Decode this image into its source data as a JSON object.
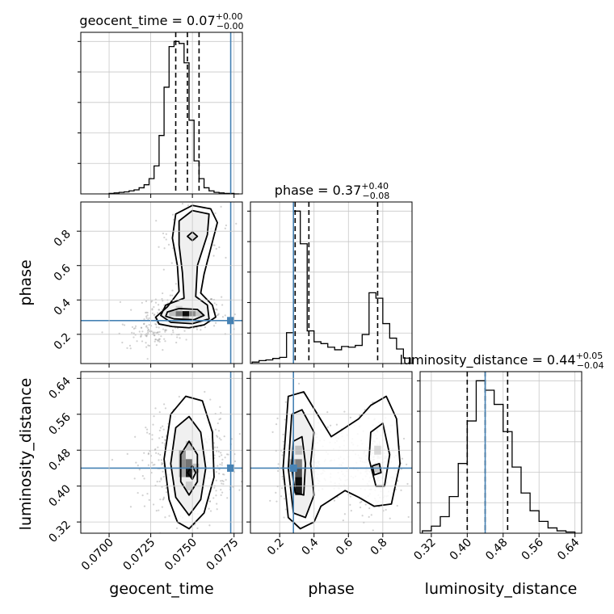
{
  "chart_data": {
    "type": "corner",
    "parameters": [
      "geocent_time",
      "phase",
      "luminosity_distance"
    ],
    "truth_color": "#4682b4",
    "truths": {
      "geocent_time": 0.0773,
      "phase": 0.28,
      "luminosity_distance": 0.44
    },
    "ranges": {
      "geocent_time": [
        0.0683,
        0.078
      ],
      "phase": [
        0.03,
        0.97
      ],
      "luminosity_distance": [
        0.295,
        0.655
      ]
    },
    "ticks": {
      "geocent_time": [
        0.07,
        0.0725,
        0.075,
        0.0775
      ],
      "phase": [
        0.2,
        0.4,
        0.6,
        0.8
      ],
      "luminosity_distance": [
        0.32,
        0.4,
        0.48,
        0.56,
        0.64
      ]
    },
    "tick_labels": {
      "geocent_time": [
        "0.0700",
        "0.0725",
        "0.0750",
        "0.0775"
      ],
      "phase": [
        "0.2",
        "0.4",
        "0.6",
        "0.8"
      ],
      "luminosity_distance": [
        "0.32",
        "0.40",
        "0.48",
        "0.56",
        "0.64"
      ]
    },
    "quantiles": {
      "geocent_time": [
        0.074,
        0.0747,
        0.0754
      ],
      "phase": [
        0.29,
        0.37,
        0.77
      ],
      "luminosity_distance": [
        0.4,
        0.44,
        0.49
      ]
    },
    "titles": {
      "geocent_time": {
        "name": "geocent_time",
        "value": "0.07",
        "plus": "+0.00",
        "minus": "−0.00"
      },
      "phase": {
        "name": "phase",
        "value": "0.37",
        "plus": "+0.40",
        "minus": "−0.08"
      },
      "luminosity_distance": {
        "name": "luminosity_distance",
        "value": "0.44",
        "plus": "+0.05",
        "minus": "−0.04"
      }
    },
    "histograms": {
      "geocent_time": {
        "edges": [
          0.07,
          0.0703,
          0.0706,
          0.0709,
          0.0712,
          0.0715,
          0.0718,
          0.0721,
          0.0724,
          0.0727,
          0.073,
          0.0733,
          0.0736,
          0.0739,
          0.0742,
          0.0745,
          0.0748,
          0.0751,
          0.0754,
          0.0757,
          0.076,
          0.0763,
          0.0766,
          0.0769,
          0.0772,
          0.0775,
          0.0778
        ],
        "counts": [
          1,
          2,
          3,
          4,
          6,
          8,
          12,
          18,
          30,
          55,
          115,
          210,
          290,
          300,
          296,
          258,
          145,
          65,
          30,
          12,
          6,
          3,
          2,
          1,
          1,
          0
        ]
      },
      "phase": {
        "edges": [
          0.04,
          0.08,
          0.12,
          0.16,
          0.2,
          0.24,
          0.28,
          0.32,
          0.36,
          0.4,
          0.44,
          0.48,
          0.52,
          0.56,
          0.6,
          0.64,
          0.68,
          0.72,
          0.76,
          0.8,
          0.84,
          0.88,
          0.92,
          0.96
        ],
        "counts": [
          4,
          8,
          10,
          14,
          17,
          85,
          420,
          330,
          90,
          60,
          55,
          45,
          38,
          47,
          45,
          50,
          80,
          195,
          180,
          110,
          70,
          40,
          15
        ]
      },
      "luminosity_distance": {
        "edges": [
          0.3,
          0.32,
          0.34,
          0.36,
          0.38,
          0.4,
          0.42,
          0.44,
          0.46,
          0.48,
          0.5,
          0.52,
          0.54,
          0.56,
          0.58,
          0.6,
          0.62,
          0.64
        ],
        "counts": [
          4,
          12,
          28,
          62,
          118,
          190,
          258,
          242,
          218,
          172,
          112,
          68,
          38,
          20,
          9,
          4,
          2
        ]
      }
    },
    "contour_panels": [
      {
        "x": "geocent_time",
        "y": "phase",
        "levels": [
          [
            [
              0.0738,
              0.245
            ],
            [
              0.0748,
              0.238
            ],
            [
              0.0757,
              0.255
            ],
            [
              0.0764,
              0.3
            ],
            [
              0.0762,
              0.37
            ],
            [
              0.0755,
              0.44
            ],
            [
              0.0757,
              0.55
            ],
            [
              0.0761,
              0.7
            ],
            [
              0.0765,
              0.85
            ],
            [
              0.0761,
              0.93
            ],
            [
              0.075,
              0.95
            ],
            [
              0.074,
              0.9
            ],
            [
              0.0738,
              0.76
            ],
            [
              0.0741,
              0.6
            ],
            [
              0.0742,
              0.45
            ],
            [
              0.0735,
              0.36
            ],
            [
              0.0728,
              0.3
            ],
            [
              0.073,
              0.26
            ]
          ],
          [
            [
              0.0737,
              0.27
            ],
            [
              0.075,
              0.262
            ],
            [
              0.076,
              0.29
            ],
            [
              0.0759,
              0.37
            ],
            [
              0.0752,
              0.42
            ],
            [
              0.0753,
              0.6
            ],
            [
              0.0759,
              0.78
            ],
            [
              0.076,
              0.9
            ],
            [
              0.075,
              0.92
            ],
            [
              0.0742,
              0.86
            ],
            [
              0.0742,
              0.72
            ],
            [
              0.0744,
              0.56
            ],
            [
              0.0745,
              0.41
            ],
            [
              0.0734,
              0.37
            ],
            [
              0.0731,
              0.31
            ]
          ],
          [
            [
              0.0739,
              0.29
            ],
            [
              0.0751,
              0.285
            ],
            [
              0.0757,
              0.31
            ],
            [
              0.0753,
              0.345
            ],
            [
              0.0742,
              0.35
            ],
            [
              0.0735,
              0.33
            ],
            [
              0.0734,
              0.305
            ]
          ],
          [
            [
              0.075,
              0.745
            ],
            [
              0.0753,
              0.77
            ],
            [
              0.075,
              0.795
            ],
            [
              0.0747,
              0.77
            ]
          ]
        ],
        "density": [
          {
            "x": 0.0746,
            "y": 0.32,
            "w": 0.0004,
            "h": 0.03,
            "shade": 0.95
          },
          {
            "x": 0.0742,
            "y": 0.32,
            "w": 0.0004,
            "h": 0.03,
            "shade": 0.55
          },
          {
            "x": 0.075,
            "y": 0.32,
            "w": 0.0004,
            "h": 0.03,
            "shade": 0.45
          },
          {
            "x": 0.0738,
            "y": 0.32,
            "w": 0.0004,
            "h": 0.03,
            "shade": 0.25
          },
          {
            "x": 0.0754,
            "y": 0.32,
            "w": 0.0004,
            "h": 0.03,
            "shade": 0.22
          },
          {
            "x": 0.0746,
            "y": 0.29,
            "w": 0.0004,
            "h": 0.03,
            "shade": 0.25
          },
          {
            "x": 0.0742,
            "y": 0.35,
            "w": 0.0004,
            "h": 0.03,
            "shade": 0.18
          },
          {
            "x": 0.075,
            "y": 0.76,
            "w": 0.0004,
            "h": 0.03,
            "shade": 0.15
          }
        ],
        "scatter": {
          "cx": 0.0745,
          "cy": 0.33,
          "sx": 0.0011,
          "sy": 0.05,
          "n": 380,
          "cx2": 0.0751,
          "cy2": 0.78,
          "sx2": 0.0008,
          "sy2": 0.08,
          "n2": 220,
          "cx3": 0.0725,
          "cy3": 0.2,
          "sx3": 0.001,
          "sy3": 0.05,
          "n3": 90
        }
      },
      {
        "x": "geocent_time",
        "y": "luminosity_distance",
        "levels": [
          [
            [
              0.0748,
              0.305
            ],
            [
              0.0757,
              0.34
            ],
            [
              0.0763,
              0.42
            ],
            [
              0.0762,
              0.52
            ],
            [
              0.0756,
              0.59
            ],
            [
              0.0746,
              0.6
            ],
            [
              0.0737,
              0.56
            ],
            [
              0.0733,
              0.46
            ],
            [
              0.0736,
              0.37
            ],
            [
              0.0741,
              0.32
            ]
          ],
          [
            [
              0.0748,
              0.335
            ],
            [
              0.0755,
              0.37
            ],
            [
              0.0758,
              0.44
            ],
            [
              0.0755,
              0.52
            ],
            [
              0.0748,
              0.555
            ],
            [
              0.074,
              0.53
            ],
            [
              0.0737,
              0.45
            ],
            [
              0.074,
              0.375
            ]
          ],
          [
            [
              0.0748,
              0.38
            ],
            [
              0.0753,
              0.41
            ],
            [
              0.0753,
              0.47
            ],
            [
              0.0748,
              0.5
            ],
            [
              0.0743,
              0.47
            ],
            [
              0.0743,
              0.41
            ]
          ],
          [
            [
              0.075,
              0.415
            ],
            [
              0.0752,
              0.43
            ],
            [
              0.075,
              0.445
            ],
            [
              0.0747,
              0.43
            ]
          ]
        ],
        "density": [
          {
            "x": 0.0748,
            "y": 0.43,
            "w": 0.0004,
            "h": 0.02,
            "shade": 0.9
          },
          {
            "x": 0.0748,
            "y": 0.45,
            "w": 0.0004,
            "h": 0.02,
            "shade": 0.55
          },
          {
            "x": 0.0744,
            "y": 0.45,
            "w": 0.0004,
            "h": 0.02,
            "shade": 0.45
          },
          {
            "x": 0.0744,
            "y": 0.47,
            "w": 0.0004,
            "h": 0.02,
            "shade": 0.4
          },
          {
            "x": 0.0744,
            "y": 0.43,
            "w": 0.0004,
            "h": 0.02,
            "shade": 0.35
          },
          {
            "x": 0.0752,
            "y": 0.44,
            "w": 0.0004,
            "h": 0.02,
            "shade": 0.25
          },
          {
            "x": 0.0748,
            "y": 0.49,
            "w": 0.0004,
            "h": 0.02,
            "shade": 0.2
          },
          {
            "x": 0.0748,
            "y": 0.4,
            "w": 0.0004,
            "h": 0.02,
            "shade": 0.2
          }
        ],
        "scatter": {
          "cx": 0.0747,
          "cy": 0.45,
          "sx": 0.0012,
          "sy": 0.055,
          "n": 650
        }
      },
      {
        "x": "phase",
        "y": "luminosity_distance",
        "levels": [
          [
            [
              0.25,
              0.6
            ],
            [
              0.34,
              0.61
            ],
            [
              0.42,
              0.56
            ],
            [
              0.5,
              0.51
            ],
            [
              0.58,
              0.53
            ],
            [
              0.66,
              0.55
            ],
            [
              0.73,
              0.58
            ],
            [
              0.82,
              0.6
            ],
            [
              0.88,
              0.55
            ],
            [
              0.9,
              0.45
            ],
            [
              0.85,
              0.36
            ],
            [
              0.75,
              0.355
            ],
            [
              0.66,
              0.375
            ],
            [
              0.58,
              0.39
            ],
            [
              0.5,
              0.37
            ],
            [
              0.44,
              0.355
            ],
            [
              0.4,
              0.32
            ],
            [
              0.32,
              0.305
            ],
            [
              0.25,
              0.33
            ],
            [
              0.22,
              0.44
            ]
          ],
          [
            [
              0.27,
              0.56
            ],
            [
              0.33,
              0.57
            ],
            [
              0.4,
              0.52
            ],
            [
              0.38,
              0.45
            ],
            [
              0.4,
              0.38
            ],
            [
              0.35,
              0.33
            ],
            [
              0.28,
              0.34
            ],
            [
              0.25,
              0.44
            ]
          ],
          [
            [
              0.73,
              0.52
            ],
            [
              0.8,
              0.54
            ],
            [
              0.84,
              0.47
            ],
            [
              0.81,
              0.4
            ],
            [
              0.76,
              0.4
            ],
            [
              0.72,
              0.46
            ]
          ],
          [
            [
              0.28,
              0.5
            ],
            [
              0.33,
              0.51
            ],
            [
              0.35,
              0.45
            ],
            [
              0.34,
              0.38
            ],
            [
              0.29,
              0.385
            ],
            [
              0.27,
              0.44
            ]
          ],
          [
            [
              0.74,
              0.445
            ],
            [
              0.78,
              0.45
            ],
            [
              0.79,
              0.43
            ],
            [
              0.75,
              0.425
            ]
          ]
        ],
        "density": [
          {
            "x": 0.31,
            "y": 0.41,
            "w": 0.04,
            "h": 0.02,
            "shade": 0.95
          },
          {
            "x": 0.31,
            "y": 0.39,
            "w": 0.04,
            "h": 0.02,
            "shade": 0.9
          },
          {
            "x": 0.31,
            "y": 0.43,
            "w": 0.04,
            "h": 0.02,
            "shade": 0.7
          },
          {
            "x": 0.31,
            "y": 0.45,
            "w": 0.04,
            "h": 0.02,
            "shade": 0.5
          },
          {
            "x": 0.27,
            "y": 0.45,
            "w": 0.04,
            "h": 0.02,
            "shade": 0.3
          },
          {
            "x": 0.31,
            "y": 0.48,
            "w": 0.04,
            "h": 0.02,
            "shade": 0.25
          },
          {
            "x": 0.77,
            "y": 0.44,
            "w": 0.04,
            "h": 0.02,
            "shade": 0.2
          },
          {
            "x": 0.77,
            "y": 0.48,
            "w": 0.04,
            "h": 0.02,
            "shade": 0.15
          }
        ],
        "scatter": {
          "cx": 0.31,
          "cy": 0.45,
          "sx": 0.05,
          "sy": 0.055,
          "n": 420,
          "cx2": 0.78,
          "cy2": 0.45,
          "sx2": 0.06,
          "sy2": 0.055,
          "n2": 240,
          "cx3": 0.55,
          "cy3": 0.45,
          "sx3": 0.12,
          "sy3": 0.05,
          "n3": 160
        }
      }
    ]
  }
}
